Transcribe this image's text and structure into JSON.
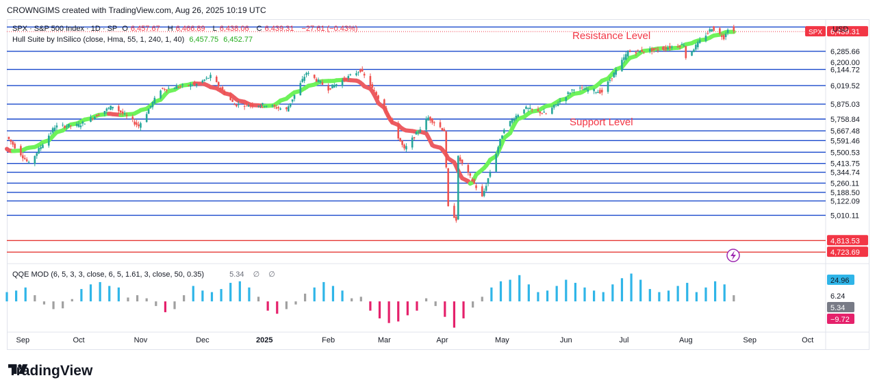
{
  "caption": "CROWNGIMS created with TradingView.com, Aug 26, 2025 10:19 UTC",
  "currency": "USD",
  "symbol_line": {
    "name": "SPX · S&P 500 Index · 1D · SP",
    "o_label": "O",
    "o": "6,457.67",
    "h_label": "H",
    "h": "6,466.89",
    "l_label": "L",
    "l": "6,438.06",
    "c_label": "C",
    "c": "6,439.31",
    "change": "−27.61 (−0.43%)"
  },
  "hull_line": {
    "name": "Hull Suite by InSilico (close, Hma, 55, 1, 240, 1, 40)",
    "v1": "6,457.75",
    "v2": "6,452.77"
  },
  "qqe_line": {
    "name": "QQE MOD (6, 5, 3, 3, close, 6, 5, 1.61, 3, close, 50, 0.35)",
    "value": "5.34",
    "na1": "∅",
    "na2": "∅"
  },
  "annotations": {
    "resistance": "Resistance Level",
    "support": "Support Level"
  },
  "price_tag": {
    "symbol": "SPX",
    "value": "6,439.31"
  },
  "footer": "TradingView",
  "colors": {
    "up": "#26a69a",
    "down": "#ef5350",
    "hull_up": "#6ef25a",
    "hull_down": "#ec5c62",
    "level": "#1848cc",
    "level_red": "#e53935",
    "qqe_up": "#2fb5e8",
    "qqe_gray": "#a0a0a0",
    "qqe_down": "#e5216b"
  },
  "chart_data": [
    {
      "type": "candlestick",
      "title": "SPX · S&P 500 Index · 1D · SP",
      "x_tick_labels": [
        "Sep",
        "Oct",
        "Nov",
        "Dec",
        "2025",
        "Feb",
        "Mar",
        "Apr",
        "May",
        "Jun",
        "Jul",
        "Aug",
        "Sep",
        "Oct"
      ],
      "ylim": [
        4650,
        6520
      ],
      "y_tick_labels": [
        "6,285.66",
        "6,200.00",
        "6,144.72",
        "6,019.52",
        "5,875.03",
        "5,758.84",
        "5,667.48",
        "5,591.46",
        "5,500.53",
        "5,413.75",
        "5,344.74",
        "5,260.11",
        "5,188.50",
        "5,122.09",
        "5,010.11",
        "4,813.53",
        "4,723.69"
      ],
      "horizontal_levels": [
        6475,
        6285.66,
        6144.72,
        6019.52,
        5875.03,
        5758.84,
        5667.48,
        5591.46,
        5500.53,
        5413.75,
        5344.74,
        5260.11,
        5188.5,
        5122.09,
        5010.11
      ],
      "horizontal_levels_red": [
        4813.53,
        4723.69
      ],
      "close_series": [
        {
          "date": "2024-08-26",
          "close": 5620
        },
        {
          "date": "2024-09-06",
          "close": 5410
        },
        {
          "date": "2024-09-19",
          "close": 5700
        },
        {
          "date": "2024-10-01",
          "close": 5710
        },
        {
          "date": "2024-10-18",
          "close": 5860
        },
        {
          "date": "2024-10-31",
          "close": 5705
        },
        {
          "date": "2024-11-11",
          "close": 5990
        },
        {
          "date": "2024-11-29",
          "close": 6030
        },
        {
          "date": "2024-12-06",
          "close": 6090
        },
        {
          "date": "2024-12-18",
          "close": 5870
        },
        {
          "date": "2025-01-02",
          "close": 5870
        },
        {
          "date": "2025-01-13",
          "close": 5830
        },
        {
          "date": "2025-01-23",
          "close": 6120
        },
        {
          "date": "2025-02-03",
          "close": 5995
        },
        {
          "date": "2025-02-19",
          "close": 6140
        },
        {
          "date": "2025-03-03",
          "close": 5850
        },
        {
          "date": "2025-03-13",
          "close": 5520
        },
        {
          "date": "2025-03-25",
          "close": 5770
        },
        {
          "date": "2025-04-02",
          "close": 5670
        },
        {
          "date": "2025-04-04",
          "close": 5070
        },
        {
          "date": "2025-04-08",
          "close": 4980
        },
        {
          "date": "2025-04-09",
          "close": 5460
        },
        {
          "date": "2025-04-21",
          "close": 5150
        },
        {
          "date": "2025-05-02",
          "close": 5690
        },
        {
          "date": "2025-05-12",
          "close": 5845
        },
        {
          "date": "2025-05-23",
          "close": 5800
        },
        {
          "date": "2025-06-06",
          "close": 6000
        },
        {
          "date": "2025-06-20",
          "close": 5970
        },
        {
          "date": "2025-07-03",
          "close": 6280
        },
        {
          "date": "2025-07-18",
          "close": 6300
        },
        {
          "date": "2025-07-31",
          "close": 6340
        },
        {
          "date": "2025-08-01",
          "close": 6238
        },
        {
          "date": "2025-08-14",
          "close": 6469
        },
        {
          "date": "2025-08-20",
          "close": 6395
        },
        {
          "date": "2025-08-22",
          "close": 6466
        },
        {
          "date": "2025-08-25",
          "close": 6439.31
        }
      ],
      "last_close": 6439.31
    },
    {
      "type": "bar",
      "title": "QQE MOD (6, 5, 3, 3, close, 6, 5, 1.61, 3, close, 50, 0.35)",
      "y_tick_labels": [
        "24.96",
        "6.24",
        "5.34",
        "−9.72"
      ],
      "series": [
        {
          "name": "QQE MOD",
          "values": [
            12,
            14,
            18,
            8,
            -4,
            -10,
            -9,
            3,
            16,
            22,
            25,
            20,
            18,
            5,
            8,
            4,
            -6,
            -14,
            -10,
            8,
            20,
            14,
            12,
            16,
            24,
            26,
            18,
            6,
            -12,
            -16,
            -10,
            -4,
            10,
            18,
            25,
            20,
            14,
            4,
            6,
            -12,
            -22,
            -28,
            -26,
            -18,
            -12,
            4,
            -6,
            -20,
            -34,
            -22,
            -8,
            6,
            18,
            26,
            28,
            34,
            22,
            12,
            14,
            20,
            28,
            24,
            18,
            14,
            12,
            22,
            30,
            36,
            28,
            16,
            12,
            14,
            20,
            24,
            12,
            18,
            26,
            22,
            8
          ]
        }
      ]
    }
  ]
}
